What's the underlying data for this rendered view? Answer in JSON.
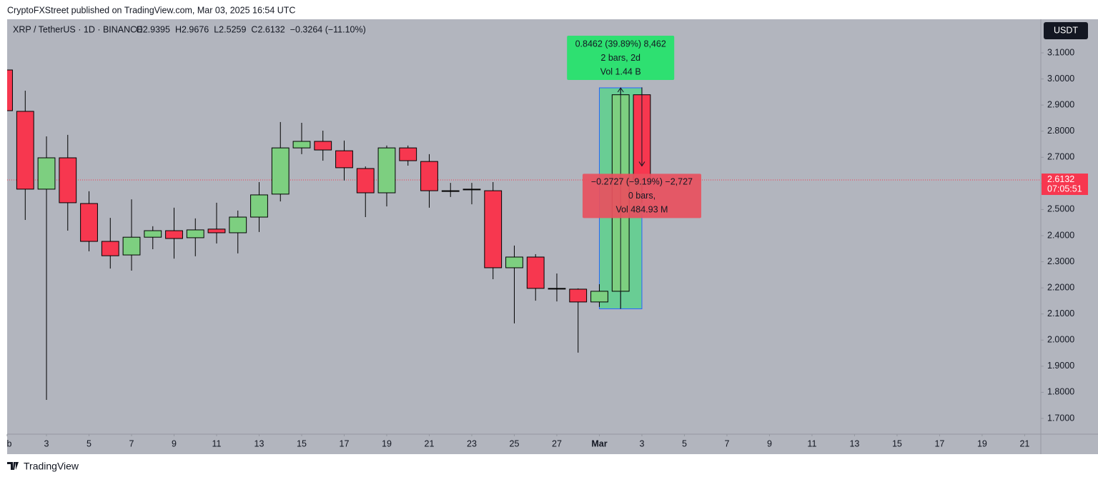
{
  "header": {
    "publisher": "CryptoFXStreet published on TradingView.com, Mar 03, 2025 16:54 UTC"
  },
  "footer": {
    "brand": "TradingView"
  },
  "chart_data": {
    "type": "candlestick",
    "title": "XRP / TetherUS · 1D · BINANCE",
    "ohlc_text": [
      "O2.9395",
      "H2.9676",
      "L2.5259",
      "C2.6132",
      "−0.3264 (−11.10%)"
    ],
    "currency": "USDT",
    "x": [
      0,
      1,
      2,
      3,
      4,
      5,
      6,
      7,
      8,
      9,
      10,
      11,
      12,
      13,
      14,
      15,
      16,
      17,
      18,
      19,
      20,
      21,
      22,
      23,
      24,
      25,
      26,
      27,
      28,
      29,
      30
    ],
    "open": [
      3.0344,
      2.876,
      2.578,
      2.698,
      2.523,
      2.378,
      2.326,
      2.394,
      2.419,
      2.392,
      2.425,
      2.411,
      2.471,
      2.559,
      2.736,
      2.761,
      2.725,
      2.657,
      2.564,
      2.736,
      2.684,
      2.572,
      2.578,
      2.572,
      2.277,
      2.318,
      2.198,
      2.195,
      2.146,
      2.187,
      2.9395
    ],
    "high": [
      3.06,
      2.955,
      2.78,
      2.786,
      2.57,
      2.468,
      2.539,
      2.436,
      2.507,
      2.466,
      2.526,
      2.496,
      2.605,
      2.835,
      2.832,
      2.802,
      2.764,
      2.665,
      2.745,
      2.745,
      2.712,
      2.602,
      2.602,
      2.605,
      2.362,
      2.329,
      2.255,
      2.198,
      2.214,
      2.966,
      2.9676
    ],
    "low": [
      2.86,
      2.46,
      1.771,
      2.419,
      2.34,
      2.274,
      2.266,
      2.348,
      2.312,
      2.321,
      2.37,
      2.332,
      2.414,
      2.531,
      2.712,
      2.687,
      2.611,
      2.471,
      2.512,
      2.668,
      2.507,
      2.548,
      2.52,
      2.233,
      2.064,
      2.151,
      2.148,
      1.952,
      2.127,
      2.1198,
      2.5259
    ],
    "close": [
      2.8785,
      2.578,
      2.698,
      2.526,
      2.378,
      2.323,
      2.394,
      2.419,
      2.389,
      2.422,
      2.411,
      2.471,
      2.556,
      2.736,
      2.761,
      2.728,
      2.66,
      2.564,
      2.736,
      2.687,
      2.572,
      2.572,
      2.578,
      2.277,
      2.318,
      2.198,
      2.198,
      2.146,
      2.187,
      2.9395,
      2.6132
    ],
    "up_color": "#7dcf80",
    "down_color": "#f7374f",
    "xlim": [
      0.15,
      48.76
    ],
    "xticks": [
      {
        "value": 0,
        "label": "b"
      },
      {
        "value": 2,
        "label": "3"
      },
      {
        "value": 4,
        "label": "5"
      },
      {
        "value": 6,
        "label": "7"
      },
      {
        "value": 8,
        "label": "9"
      },
      {
        "value": 10,
        "label": "11"
      },
      {
        "value": 12,
        "label": "13"
      },
      {
        "value": 14,
        "label": "15"
      },
      {
        "value": 16,
        "label": "17"
      },
      {
        "value": 18,
        "label": "19"
      },
      {
        "value": 20,
        "label": "21"
      },
      {
        "value": 22,
        "label": "23"
      },
      {
        "value": 24,
        "label": "25"
      },
      {
        "value": 26,
        "label": "27"
      },
      {
        "value": 28,
        "label": "Mar"
      },
      {
        "value": 30,
        "label": "3"
      },
      {
        "value": 32,
        "label": "5"
      },
      {
        "value": 34,
        "label": "7"
      },
      {
        "value": 36,
        "label": "9"
      },
      {
        "value": 38,
        "label": "11"
      },
      {
        "value": 40,
        "label": "13"
      },
      {
        "value": 42,
        "label": "15"
      },
      {
        "value": 44,
        "label": "17"
      },
      {
        "value": 46,
        "label": "19"
      },
      {
        "value": 48,
        "label": "21"
      }
    ],
    "ylim": [
      1.6398,
      3.2285
    ],
    "yticks": [
      {
        "value": 1.7,
        "label": "1.7000"
      },
      {
        "value": 1.8,
        "label": "1.8000"
      },
      {
        "value": 1.9,
        "label": "1.9000"
      },
      {
        "value": 2.0,
        "label": "2.0000"
      },
      {
        "value": 2.1,
        "label": "2.1000"
      },
      {
        "value": 2.2,
        "label": "2.2000"
      },
      {
        "value": 2.3,
        "label": "2.3000"
      },
      {
        "value": 2.4,
        "label": "2.4000"
      },
      {
        "value": 2.5,
        "label": "2.5000"
      },
      {
        "value": 2.6,
        "label": "2.6000"
      },
      {
        "value": 2.7,
        "label": "2.7000"
      },
      {
        "value": 2.8,
        "label": "2.8000"
      },
      {
        "value": 2.9,
        "label": "2.9000"
      },
      {
        "value": 3.0,
        "label": "3.0000"
      },
      {
        "value": 3.1,
        "label": "3.1000"
      }
    ],
    "last_price": {
      "value": 2.6132,
      "label": "2.6132"
    },
    "countdown": "07:05:51",
    "measures": [
      {
        "lines": [
          "0.8462 (39.89%) 8,462",
          "2 bars, 2d",
          "Vol 1.44 B"
        ],
        "color": "#2ee071",
        "from": 2.1198,
        "to": 2.966,
        "x_from": 28,
        "x_to": 30
      },
      {
        "lines": [
          "−0.2727 (−9.19%) −2,727",
          "0 bars,",
          "Vol 484.93 M"
        ],
        "color": "#e8505e",
        "from": 2.9395,
        "to": 2.6668,
        "x_from": 30,
        "x_to": 30
      }
    ]
  }
}
